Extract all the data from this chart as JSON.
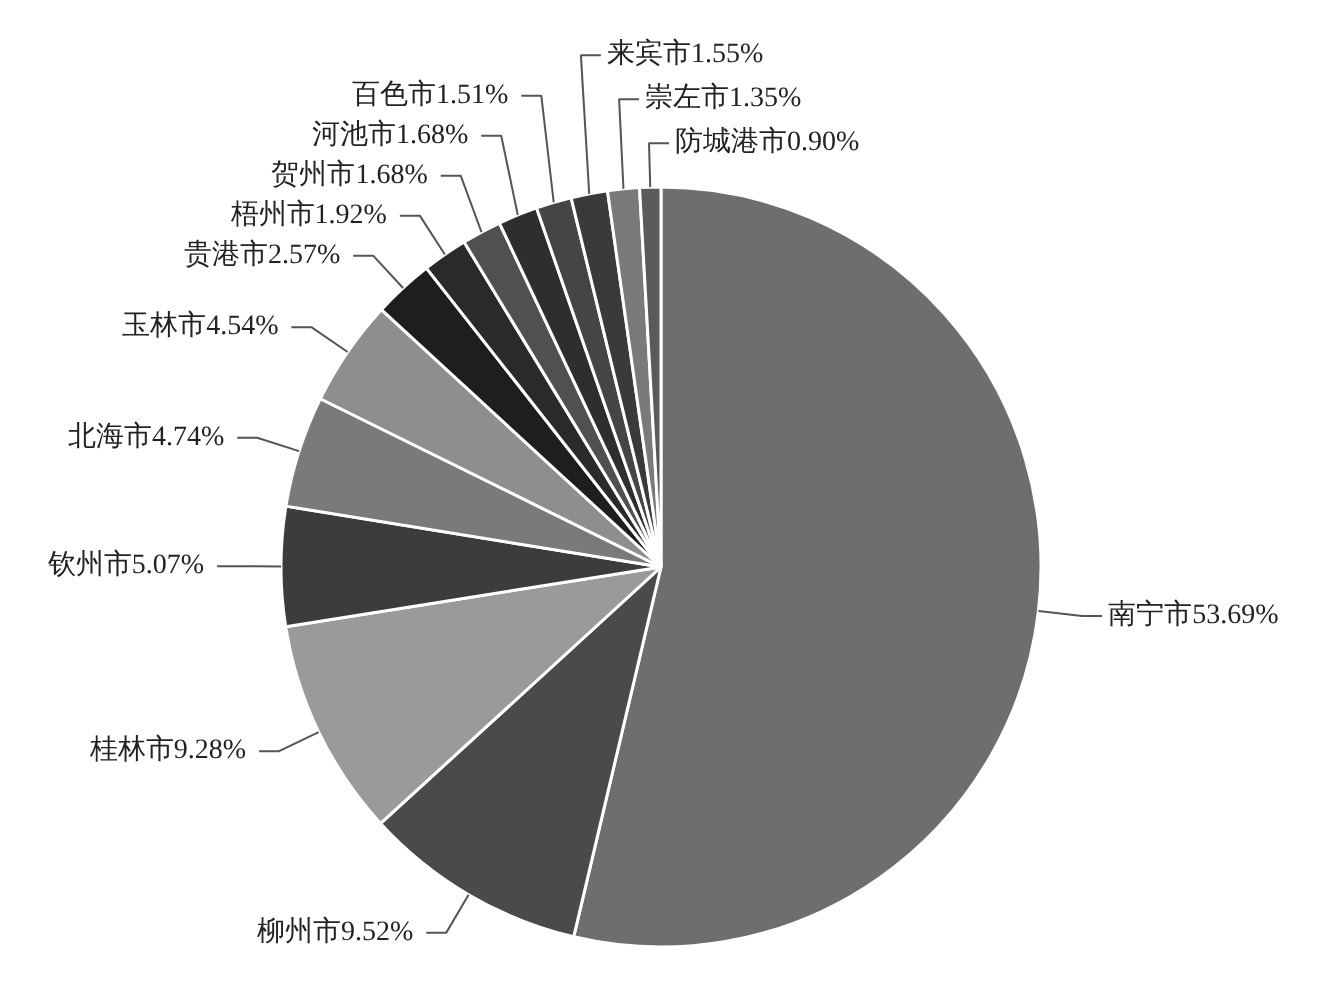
{
  "chart_data": {
    "type": "pie",
    "categories": [
      "南宁市",
      "柳州市",
      "桂林市",
      "钦州市",
      "北海市",
      "玉林市",
      "贵港市",
      "梧州市",
      "贺州市",
      "河池市",
      "百色市",
      "来宾市",
      "崇左市",
      "防城港市"
    ],
    "values": [
      53.69,
      9.52,
      9.28,
      5.07,
      4.74,
      4.54,
      2.57,
      1.92,
      1.68,
      1.68,
      1.51,
      1.55,
      1.35,
      0.9
    ],
    "colors": [
      "#6e6e6e",
      "#4a4a4a",
      "#9a9a9a",
      "#3c3c3c",
      "#7a7a7a",
      "#8e8e8e",
      "#1e1e1e",
      "#2a2a2a",
      "#505050",
      "#2e2e2e",
      "#454545",
      "#3a3a3a",
      "#7a7a7a",
      "#5a5a5a"
    ],
    "value_labels": [
      "53.69%",
      "9.52%",
      "9.28%",
      "5.07%",
      "4.74%",
      "4.54%",
      "2.57%",
      "1.92%",
      "1.68%",
      "1.68%",
      "1.51%",
      "1.55%",
      "1.35%",
      "0.90%"
    ]
  }
}
